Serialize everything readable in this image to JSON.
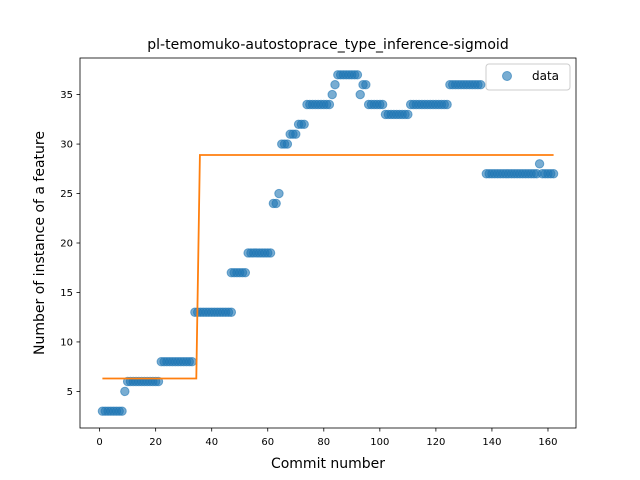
{
  "chart_data": {
    "type": "scatter",
    "title": "pl-temomuko-autostoprace_type_inference-sigmoid",
    "xlabel": "Commit number",
    "ylabel": "Number of instance of a feature",
    "xlim": [
      -7,
      170
    ],
    "ylim": [
      1.3,
      38.7
    ],
    "xticks": [
      0,
      20,
      40,
      60,
      80,
      100,
      120,
      140,
      160
    ],
    "yticks": [
      5,
      10,
      15,
      20,
      25,
      30,
      35
    ],
    "legend": {
      "position": "top-right",
      "entries": [
        "data"
      ]
    },
    "colors": {
      "data": "#1f77b4",
      "fit": "#ff7f0e"
    },
    "series": [
      {
        "name": "data",
        "kind": "scatter",
        "points": [
          [
            1,
            3
          ],
          [
            2,
            3
          ],
          [
            3,
            3
          ],
          [
            4,
            3
          ],
          [
            5,
            3
          ],
          [
            6,
            3
          ],
          [
            7,
            3
          ],
          [
            8,
            3
          ],
          [
            9,
            5
          ],
          [
            10,
            6
          ],
          [
            11,
            6
          ],
          [
            12,
            6
          ],
          [
            13,
            6
          ],
          [
            14,
            6
          ],
          [
            15,
            6
          ],
          [
            16,
            6
          ],
          [
            17,
            6
          ],
          [
            18,
            6
          ],
          [
            19,
            6
          ],
          [
            20,
            6
          ],
          [
            21,
            6
          ],
          [
            22,
            8
          ],
          [
            23,
            8
          ],
          [
            24,
            8
          ],
          [
            25,
            8
          ],
          [
            26,
            8
          ],
          [
            27,
            8
          ],
          [
            28,
            8
          ],
          [
            29,
            8
          ],
          [
            30,
            8
          ],
          [
            31,
            8
          ],
          [
            32,
            8
          ],
          [
            33,
            8
          ],
          [
            34,
            13
          ],
          [
            35,
            13
          ],
          [
            36,
            13
          ],
          [
            37,
            13
          ],
          [
            38,
            13
          ],
          [
            39,
            13
          ],
          [
            40,
            13
          ],
          [
            41,
            13
          ],
          [
            42,
            13
          ],
          [
            43,
            13
          ],
          [
            44,
            13
          ],
          [
            45,
            13
          ],
          [
            46,
            13
          ],
          [
            47,
            13
          ],
          [
            47,
            17
          ],
          [
            48,
            17
          ],
          [
            49,
            17
          ],
          [
            50,
            17
          ],
          [
            51,
            17
          ],
          [
            52,
            17
          ],
          [
            53,
            19
          ],
          [
            54,
            19
          ],
          [
            55,
            19
          ],
          [
            56,
            19
          ],
          [
            57,
            19
          ],
          [
            58,
            19
          ],
          [
            59,
            19
          ],
          [
            60,
            19
          ],
          [
            61,
            19
          ],
          [
            62,
            24
          ],
          [
            63,
            24
          ],
          [
            64,
            25
          ],
          [
            65,
            30
          ],
          [
            66,
            30
          ],
          [
            67,
            30
          ],
          [
            68,
            31
          ],
          [
            69,
            31
          ],
          [
            70,
            31
          ],
          [
            71,
            32
          ],
          [
            72,
            32
          ],
          [
            73,
            32
          ],
          [
            74,
            34
          ],
          [
            75,
            34
          ],
          [
            76,
            34
          ],
          [
            77,
            34
          ],
          [
            78,
            34
          ],
          [
            79,
            34
          ],
          [
            80,
            34
          ],
          [
            81,
            34
          ],
          [
            82,
            34
          ],
          [
            83,
            35
          ],
          [
            84,
            36
          ],
          [
            85,
            37
          ],
          [
            86,
            37
          ],
          [
            87,
            37
          ],
          [
            88,
            37
          ],
          [
            89,
            37
          ],
          [
            90,
            37
          ],
          [
            91,
            37
          ],
          [
            92,
            37
          ],
          [
            93,
            35
          ],
          [
            94,
            36
          ],
          [
            95,
            36
          ],
          [
            96,
            34
          ],
          [
            97,
            34
          ],
          [
            98,
            34
          ],
          [
            99,
            34
          ],
          [
            100,
            34
          ],
          [
            101,
            34
          ],
          [
            102,
            33
          ],
          [
            103,
            33
          ],
          [
            104,
            33
          ],
          [
            105,
            33
          ],
          [
            106,
            33
          ],
          [
            107,
            33
          ],
          [
            108,
            33
          ],
          [
            109,
            33
          ],
          [
            110,
            33
          ],
          [
            111,
            34
          ],
          [
            112,
            34
          ],
          [
            113,
            34
          ],
          [
            114,
            34
          ],
          [
            115,
            34
          ],
          [
            116,
            34
          ],
          [
            117,
            34
          ],
          [
            118,
            34
          ],
          [
            119,
            34
          ],
          [
            120,
            34
          ],
          [
            121,
            34
          ],
          [
            122,
            34
          ],
          [
            123,
            34
          ],
          [
            124,
            34
          ],
          [
            125,
            36
          ],
          [
            126,
            36
          ],
          [
            127,
            36
          ],
          [
            128,
            36
          ],
          [
            129,
            36
          ],
          [
            130,
            36
          ],
          [
            131,
            36
          ],
          [
            132,
            36
          ],
          [
            133,
            36
          ],
          [
            134,
            36
          ],
          [
            135,
            36
          ],
          [
            136,
            36
          ],
          [
            138,
            27
          ],
          [
            139,
            27
          ],
          [
            140,
            27
          ],
          [
            141,
            27
          ],
          [
            142,
            27
          ],
          [
            143,
            27
          ],
          [
            144,
            27
          ],
          [
            145,
            27
          ],
          [
            146,
            27
          ],
          [
            147,
            27
          ],
          [
            148,
            27
          ],
          [
            149,
            27
          ],
          [
            150,
            27
          ],
          [
            151,
            27
          ],
          [
            152,
            27
          ],
          [
            153,
            27
          ],
          [
            154,
            27
          ],
          [
            155,
            27
          ],
          [
            156,
            27
          ],
          [
            157,
            28
          ],
          [
            158,
            27
          ],
          [
            159,
            27
          ],
          [
            160,
            27
          ],
          [
            161,
            27
          ],
          [
            162,
            27
          ]
        ]
      },
      {
        "kind": "line",
        "points": [
          [
            1,
            6.3
          ],
          [
            34.5,
            6.3
          ],
          [
            35.8,
            28.9
          ],
          [
            162,
            28.9
          ]
        ]
      }
    ]
  }
}
